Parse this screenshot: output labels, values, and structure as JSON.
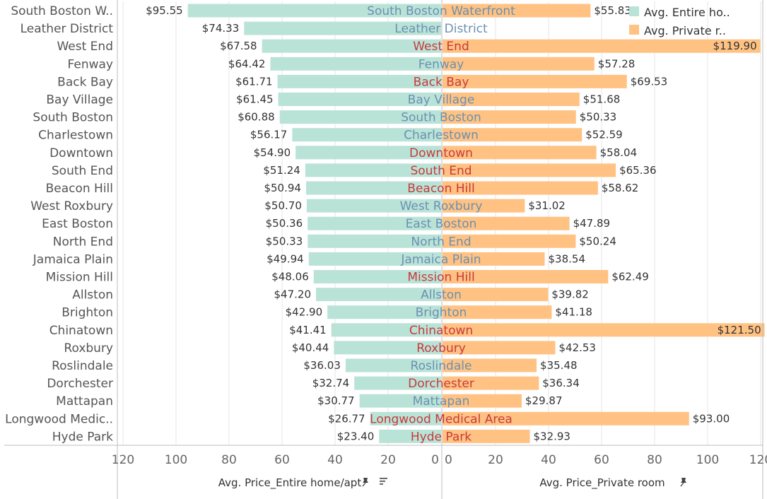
{
  "colors": {
    "entire_home": "#bae3d8",
    "private_room": "#ffc283",
    "label_neutral": "#6a90b0",
    "label_highlight": "#c83a3a",
    "gridline": "#e6e6e6",
    "axis": "#bdbdbd"
  },
  "legend": [
    {
      "label": "Avg. Entire ho..",
      "color": "#bae3d8"
    },
    {
      "label": "Avg. Private r..",
      "color": "#ffc283"
    }
  ],
  "icons": {
    "left_axis": [
      "pin-icon",
      "sort-icon"
    ],
    "right_axis": [
      "pin-icon"
    ]
  },
  "chart_data": {
    "type": "bar",
    "orientation": "horizontal-diverging",
    "categories": [
      "South Boston Waterfront",
      "Leather District",
      "West End",
      "Fenway",
      "Back Bay",
      "Bay Village",
      "South Boston",
      "Charlestown",
      "Downtown",
      "South End",
      "Beacon Hill",
      "West Roxbury",
      "East Boston",
      "North End",
      "Jamaica Plain",
      "Mission Hill",
      "Allston",
      "Brighton",
      "Chinatown",
      "Roxbury",
      "Roslindale",
      "Dorchester",
      "Mattapan",
      "Longwood Medical Area",
      "Hyde Park"
    ],
    "row_labels": [
      "South Boston W..",
      "Leather District",
      "West End",
      "Fenway",
      "Back Bay",
      "Bay Village",
      "South Boston",
      "Charlestown",
      "Downtown",
      "South End",
      "Beacon Hill",
      "West Roxbury",
      "East Boston",
      "North End",
      "Jamaica Plain",
      "Mission Hill",
      "Allston",
      "Brighton",
      "Chinatown",
      "Roxbury",
      "Roslindale",
      "Dorchester",
      "Mattapan",
      "Longwood Medic..",
      "Hyde Park"
    ],
    "highlighted": [
      "West End",
      "Back Bay",
      "Downtown",
      "South End",
      "Beacon Hill",
      "Mission Hill",
      "Chinatown",
      "Roxbury",
      "Dorchester",
      "Longwood Medical Area",
      "Hyde Park"
    ],
    "series": [
      {
        "name": "Avg. Price_Entire home/apt",
        "values": [
          95.55,
          74.33,
          67.58,
          64.42,
          61.71,
          61.45,
          60.88,
          56.17,
          54.9,
          51.24,
          50.94,
          50.7,
          50.36,
          50.33,
          49.94,
          48.06,
          47.2,
          42.9,
          41.41,
          40.44,
          36.03,
          32.74,
          30.77,
          26.77,
          23.4
        ],
        "labels": [
          "$95.55",
          "$74.33",
          "$67.58",
          "$64.42",
          "$61.71",
          "$61.45",
          "$60.88",
          "$56.17",
          "$54.90",
          "$51.24",
          "$50.94",
          "$50.70",
          "$50.36",
          "$50.33",
          "$49.94",
          "$48.06",
          "$47.20",
          "$42.90",
          "$41.41",
          "$40.44",
          "$36.03",
          "$32.74",
          "$30.77",
          "$26.77",
          "$23.40"
        ]
      },
      {
        "name": "Avg. Price_Private room",
        "values": [
          55.83,
          null,
          119.9,
          57.28,
          69.53,
          51.68,
          50.33,
          52.59,
          58.04,
          65.36,
          58.62,
          31.02,
          47.89,
          50.24,
          38.54,
          62.49,
          39.82,
          41.18,
          121.5,
          42.53,
          35.48,
          36.34,
          29.87,
          93.0,
          32.93
        ],
        "labels": [
          "$55.83",
          "",
          "$119.90",
          "$57.28",
          "$69.53",
          "$51.68",
          "$50.33",
          "$52.59",
          "$58.04",
          "$65.36",
          "$58.62",
          "$31.02",
          "$47.89",
          "$50.24",
          "$38.54",
          "$62.49",
          "$39.82",
          "$41.18",
          "$121.50",
          "$42.53",
          "$35.48",
          "$36.34",
          "$29.87",
          "$93.00",
          "$32.93"
        ]
      }
    ],
    "xlim_left": [
      0,
      120
    ],
    "xlim_right": [
      0,
      120
    ],
    "ticks": [
      0,
      20,
      40,
      60,
      80,
      100,
      120
    ],
    "xlabel_left": "Avg. Price_Entire home/apt",
    "xlabel_right": "Avg. Price_Private room",
    "grid": true,
    "legend_position": "top-right"
  }
}
